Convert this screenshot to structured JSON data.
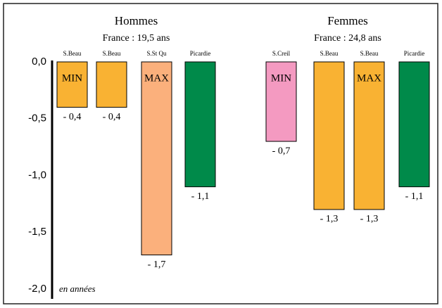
{
  "chart_data": {
    "type": "bar",
    "note": "en années",
    "ylim": [
      -2.0,
      0.0
    ],
    "yticks": [
      {
        "value": 0.0,
        "label": "0,0"
      },
      {
        "value": -0.5,
        "label": "-0,5"
      },
      {
        "value": -1.0,
        "label": "-1,0"
      },
      {
        "value": -1.5,
        "label": "-1,5"
      },
      {
        "value": -2.0,
        "label": "-2,0"
      }
    ],
    "grid": false,
    "groups": [
      {
        "name": "Hommes",
        "subtitle": "France : 19,5 ans",
        "categories": [
          "S.Beau",
          "S.Beau",
          "S.St Qu",
          "Picardie"
        ],
        "values": [
          -0.4,
          -0.4,
          -1.7,
          -1.1
        ],
        "value_labels": [
          "- 0,4",
          "- 0,4",
          "- 1,7",
          "- 1,1"
        ],
        "colors": [
          "#f9b233",
          "#f9b233",
          "#fbb07c",
          "#008a4a"
        ],
        "tags": [
          "MIN",
          null,
          "MAX",
          null
        ]
      },
      {
        "name": "Femmes",
        "subtitle": "France : 24,8 ans",
        "categories": [
          "S.Creil",
          "S.Beau",
          "S.Beau",
          "Picardie"
        ],
        "values": [
          -0.7,
          -1.3,
          -1.3,
          -1.1
        ],
        "value_labels": [
          "- 0,7",
          "- 1,3",
          "- 1,3",
          "- 1,1"
        ],
        "colors": [
          "#f49ac1",
          "#f9b233",
          "#f9b233",
          "#008a4a"
        ],
        "tags": [
          "MIN",
          null,
          "MAX",
          null
        ]
      }
    ]
  }
}
